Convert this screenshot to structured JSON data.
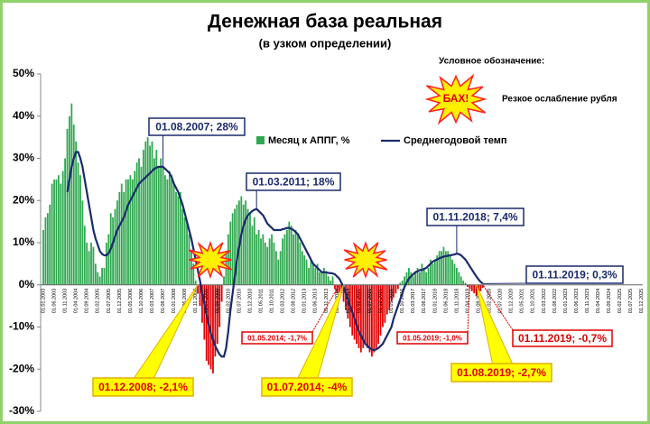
{
  "chart_data": {
    "type": "bar_line",
    "title": "Денежная база реальная",
    "subtitle": "(в узком определении)",
    "legend_note_title": "Условное обозначение:",
    "burst_label": "БАХ!",
    "burst_note": "Резкое ослабление рубля",
    "ylim": [
      -30,
      50
    ],
    "yticks": [
      {
        "value": -30,
        "label": "-30%"
      },
      {
        "value": -20,
        "label": "-20%"
      },
      {
        "value": -10,
        "label": "-10%"
      },
      {
        "value": 0,
        "label": "0%"
      },
      {
        "value": 10,
        "label": "10%"
      },
      {
        "value": 20,
        "label": "20%"
      },
      {
        "value": 30,
        "label": "30%"
      },
      {
        "value": 40,
        "label": "40%"
      },
      {
        "value": 50,
        "label": "50%"
      }
    ],
    "grid": false,
    "categories": [
      "01.01.2003",
      null,
      null,
      null,
      null,
      "01.06.2003",
      null,
      null,
      null,
      null,
      "01.11.2003",
      null,
      null,
      null,
      null,
      "01.04.2004",
      null,
      null,
      null,
      null,
      "01.09.2004",
      null,
      null,
      null,
      null,
      "01.02.2005",
      null,
      null,
      null,
      null,
      "01.07.2005",
      null,
      null,
      null,
      null,
      "01.12.2005",
      null,
      null,
      null,
      null,
      "01.05.2006",
      null,
      null,
      null,
      null,
      "01.10.2006",
      null,
      null,
      null,
      null,
      "01.03.2007",
      null,
      null,
      null,
      null,
      "01.08.2007",
      null,
      null,
      null,
      null,
      "01.01.2008",
      null,
      null,
      null,
      null,
      "01.06.2008",
      null,
      null,
      null,
      null,
      "01.11.2008",
      null,
      null,
      null,
      null,
      "01.04.2009",
      null,
      null,
      null,
      null,
      "01.09.2009",
      null,
      null,
      null,
      null,
      "01.02.2010",
      null,
      null,
      null,
      null,
      "01.07.2010",
      null,
      null,
      null,
      null,
      "01.12.2010",
      null,
      null,
      null,
      null,
      "01.05.2011",
      null,
      null,
      null,
      null,
      "01.10.2011",
      null,
      null,
      null,
      null,
      "01.03.2012",
      null,
      null,
      null,
      null,
      "01.08.2012",
      null,
      null,
      null,
      null,
      "01.01.2013",
      null,
      null,
      null,
      null,
      "01.06.2013",
      null,
      null,
      null,
      null,
      "01.11.2013",
      null,
      null,
      null,
      null,
      "01.04.2014",
      null,
      null,
      null,
      null,
      "01.09.2014",
      null,
      null,
      null,
      null,
      "01.02.2015",
      null,
      null,
      null,
      null,
      "01.07.2015",
      null,
      null,
      null,
      null,
      "01.12.2015",
      null,
      null,
      null,
      null,
      "01.05.2016",
      null,
      null,
      null,
      null,
      "01.10.2016",
      null,
      null,
      null,
      null,
      "01.03.2017",
      null,
      null,
      null,
      null,
      "01.08.2017",
      null,
      null,
      null,
      null,
      "01.01.2018",
      null,
      null,
      null,
      null,
      "01.06.2018",
      null,
      null,
      null,
      null,
      "01.11.2018",
      null,
      null,
      null,
      null,
      "01.04.2019",
      null,
      null,
      null,
      null,
      "01.09.2019",
      null,
      null,
      null,
      null,
      "01.02.2020",
      null,
      null,
      null,
      null,
      "01.07.2020",
      null,
      null,
      null,
      null,
      "01.12.2020",
      null,
      null,
      null,
      null,
      "01.05.2021",
      null,
      null,
      null,
      null,
      "01.10.2021",
      null,
      null,
      null,
      null,
      "01.03.2022",
      null,
      null,
      null,
      null,
      "01.08.2022",
      null,
      null,
      null,
      null,
      "01.01.2023",
      null,
      null,
      null,
      null,
      "01.06.2023",
      null,
      null,
      null,
      null,
      "01.11.2023",
      null,
      null,
      null,
      null,
      "01.04.2024",
      null,
      null,
      null,
      null,
      "01.09.2024",
      null,
      null,
      null,
      null,
      "01.02.2025",
      null,
      null,
      null,
      null,
      "01.07.2025",
      null,
      null,
      null,
      null,
      "01.12.2025"
    ],
    "series": [
      {
        "name": "Месяц к АППГ, %",
        "color": "#2fa84f",
        "negative_color": "#e00000",
        "values": [
          13,
          16,
          17,
          19,
          24,
          25,
          25,
          26,
          24,
          27,
          30,
          37,
          40,
          43,
          38,
          34,
          29,
          26,
          20,
          14,
          10,
          8,
          10,
          9,
          5,
          3,
          2,
          4,
          4,
          10,
          12,
          17,
          16,
          18,
          20,
          22,
          24,
          22,
          25,
          25,
          26,
          25,
          27,
          29,
          30,
          28,
          32,
          34,
          35,
          33,
          34,
          30,
          32,
          28,
          30,
          28,
          26,
          25,
          27,
          26,
          24,
          22,
          21,
          22,
          18,
          16,
          15,
          12,
          8,
          5,
          1,
          -2.1,
          -5,
          -9,
          -13,
          -18,
          -19,
          -20,
          -21,
          -17,
          -14,
          -10,
          -4,
          2,
          8,
          12,
          15,
          17,
          18,
          19,
          20,
          21,
          19,
          20,
          18,
          17,
          14,
          16,
          12,
          13,
          11,
          12,
          10,
          9,
          11,
          12,
          10,
          8,
          6,
          8,
          11,
          12,
          13,
          15,
          14,
          12,
          13,
          12,
          10,
          8,
          7,
          6,
          4,
          6,
          5,
          4,
          5,
          3,
          3,
          4,
          3,
          2,
          1,
          2,
          -1,
          -2,
          -1.7,
          -2,
          -4,
          -6,
          -8,
          -10,
          -12,
          -13,
          -14,
          -15,
          -16,
          -15,
          -14,
          -15,
          -16,
          -17,
          -16,
          -15,
          -14,
          -12,
          -10,
          -9,
          -7,
          -6,
          -4,
          -3,
          -2,
          -1,
          0.5,
          1,
          2,
          3,
          4,
          3,
          2,
          3,
          4,
          3,
          5,
          4,
          3,
          4,
          6,
          5,
          6,
          7,
          8,
          8,
          9,
          8,
          8,
          7,
          6,
          5,
          4,
          3,
          2,
          1,
          0.5,
          -0.5,
          -1,
          -1.5,
          -2,
          -2.7,
          -2,
          -1.5,
          -0.7,
          null,
          null,
          null,
          null,
          null,
          null,
          null,
          null,
          null,
          null,
          null,
          null,
          null,
          null,
          null,
          null,
          null,
          null,
          null,
          null,
          null,
          null,
          null,
          null,
          null,
          null,
          null,
          null,
          null,
          null,
          null,
          null,
          null,
          null,
          null,
          null,
          null,
          null,
          null,
          null,
          null,
          null,
          null,
          null,
          null,
          null,
          null,
          null,
          null,
          null,
          null,
          null,
          null,
          null,
          null,
          null,
          null,
          null,
          null,
          null,
          null,
          null,
          null,
          null,
          null,
          null,
          null,
          null,
          null,
          null,
          null,
          null,
          null
        ]
      },
      {
        "name": "Среднегодовой темп",
        "color": "#1a2a6c",
        "values": [
          null,
          null,
          null,
          null,
          null,
          null,
          null,
          null,
          null,
          null,
          null,
          22,
          25,
          28,
          30,
          31.5,
          31.5,
          30,
          28,
          25,
          22,
          19,
          16,
          13,
          11,
          9.5,
          8,
          7.3,
          7,
          7,
          7.5,
          8.5,
          10,
          11.5,
          13,
          14,
          15,
          16,
          17.5,
          19,
          20,
          21,
          22,
          23,
          24,
          24.5,
          25,
          25.5,
          26,
          26.5,
          27,
          27.5,
          27.8,
          28,
          28,
          28,
          27.5,
          27,
          26.5,
          25.5,
          24,
          23,
          22,
          20.5,
          19,
          17,
          15,
          13,
          11,
          8.5,
          6,
          3.5,
          1,
          -2,
          -4.5,
          -7,
          -9.5,
          -11.5,
          -13,
          -14.5,
          -15.5,
          -16.5,
          -17,
          -17,
          -15,
          -11,
          -6,
          -2,
          2,
          6,
          9,
          12,
          14,
          15.5,
          16.5,
          17,
          17.5,
          17.8,
          18,
          17.5,
          17,
          16.5,
          15.5,
          14.5,
          14,
          13.5,
          13,
          13,
          13,
          13,
          13.2,
          13.3,
          13.5,
          13.5,
          13.3,
          13,
          12.5,
          12,
          11,
          10,
          9,
          8,
          7,
          6,
          5,
          4.5,
          4,
          3.5,
          3,
          3,
          3,
          2.8,
          2.8,
          2.7,
          2.5,
          2,
          1.5,
          0.5,
          -0.5,
          -2,
          -3.5,
          -5,
          -6.5,
          -8,
          -9.5,
          -11,
          -12,
          -13,
          -14,
          -14.5,
          -15,
          -15.3,
          -15.5,
          -15.3,
          -15,
          -14.5,
          -14,
          -13,
          -12,
          -11,
          -10,
          -8,
          -6.5,
          -5,
          -3.5,
          -2,
          -0.5,
          0.5,
          1.5,
          2,
          2.5,
          3,
          3.2,
          3.5,
          3.5,
          3.8,
          4,
          4.5,
          5,
          5.5,
          5.8,
          6,
          6.3,
          6.5,
          6.7,
          6.8,
          6.9,
          7,
          7.1,
          7.2,
          7.4,
          7.3,
          7,
          6.5,
          6,
          5.2,
          4.4,
          3.6,
          2.8,
          2,
          1.3,
          0.7,
          0.3,
          null,
          null,
          null,
          null,
          null,
          null,
          null,
          null,
          null,
          null,
          null,
          null,
          null,
          null,
          null,
          null,
          null,
          null,
          null,
          null,
          null,
          null,
          null,
          null,
          null,
          null,
          null,
          null,
          null,
          null,
          null,
          null,
          null,
          null,
          null,
          null,
          null,
          null,
          null,
          null,
          null,
          null,
          null,
          null,
          null,
          null,
          null,
          null,
          null,
          null,
          null,
          null,
          null,
          null,
          null,
          null,
          null,
          null,
          null,
          null,
          null,
          null,
          null,
          null,
          null,
          null,
          null,
          null,
          null,
          null,
          null,
          null,
          null
        ]
      }
    ],
    "annotations": [
      "01.08.2007; 28%",
      "01.03.2011; 18%",
      "01.11.2018; 7,4%",
      "01.11.2019; 0,3%",
      "01.12.2008; -2,1%",
      "01.07.2014; -4%",
      "01.08.2019; -2,7%",
      "01.05.2014; -1,7%",
      "01.05.2019; -1,0%",
      "01.11.2019; -0,7%"
    ]
  }
}
